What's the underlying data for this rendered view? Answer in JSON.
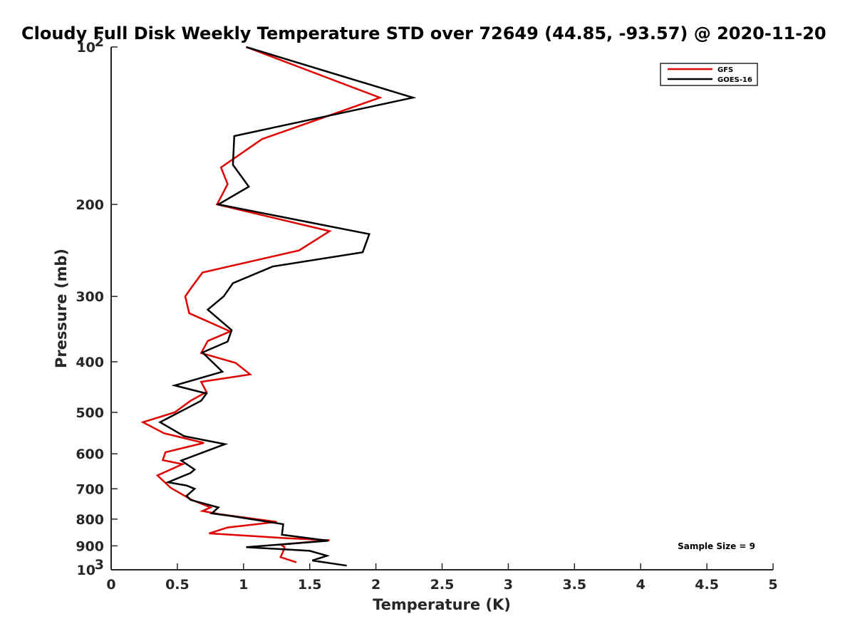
{
  "chart_data": {
    "type": "line",
    "title": "Cloudy Full Disk Weekly Temperature STD over 72649 (44.85, -93.57) @ 2020-11-20",
    "xlabel": "Temperature (K)",
    "ylabel": "Pressure (mb)",
    "xlim": [
      0,
      5
    ],
    "ylim": [
      1000,
      100
    ],
    "y_scale": "log",
    "x_ticks": [
      {
        "value": 0,
        "label": "0"
      },
      {
        "value": 0.5,
        "label": "0.5"
      },
      {
        "value": 1,
        "label": "1"
      },
      {
        "value": 1.5,
        "label": "1.5"
      },
      {
        "value": 2,
        "label": "2"
      },
      {
        "value": 2.5,
        "label": "2.5"
      },
      {
        "value": 3,
        "label": "3"
      },
      {
        "value": 3.5,
        "label": "3.5"
      },
      {
        "value": 4,
        "label": "4"
      },
      {
        "value": 4.5,
        "label": "4.5"
      },
      {
        "value": 5,
        "label": "5"
      }
    ],
    "y_ticks": [
      {
        "value": 100,
        "label": "10",
        "sup": "2"
      },
      {
        "value": 200,
        "label": "200"
      },
      {
        "value": 300,
        "label": "300"
      },
      {
        "value": 400,
        "label": "400"
      },
      {
        "value": 500,
        "label": "500"
      },
      {
        "value": 600,
        "label": "600"
      },
      {
        "value": 700,
        "label": "700"
      },
      {
        "value": 800,
        "label": "800"
      },
      {
        "value": 900,
        "label": "900"
      },
      {
        "value": 1000,
        "label": "10",
        "sup": "3"
      }
    ],
    "legend_position": "top-right",
    "grid": false,
    "annotation": "Sample Size = 9",
    "series": [
      {
        "name": "GFS",
        "color": "#e00000",
        "points": [
          [
            1.02,
            100
          ],
          [
            2.03,
            125
          ],
          [
            1.14,
            150
          ],
          [
            0.83,
            170
          ],
          [
            0.88,
            183
          ],
          [
            0.8,
            200
          ],
          [
            1.65,
            225
          ],
          [
            1.42,
            245
          ],
          [
            0.69,
            270
          ],
          [
            0.6,
            290
          ],
          [
            0.56,
            300
          ],
          [
            0.59,
            323
          ],
          [
            0.9,
            350
          ],
          [
            0.73,
            365
          ],
          [
            0.68,
            385
          ],
          [
            0.94,
            402
          ],
          [
            1.05,
            423
          ],
          [
            0.68,
            437
          ],
          [
            0.72,
            457
          ],
          [
            0.6,
            475
          ],
          [
            0.48,
            500
          ],
          [
            0.24,
            522
          ],
          [
            0.4,
            548
          ],
          [
            0.7,
            572
          ],
          [
            0.41,
            596
          ],
          [
            0.39,
            617
          ],
          [
            0.54,
            628
          ],
          [
            0.35,
            660
          ],
          [
            0.45,
            697
          ],
          [
            0.6,
            733
          ],
          [
            0.75,
            760
          ],
          [
            0.69,
            772
          ],
          [
            0.82,
            783
          ],
          [
            1.25,
            810
          ],
          [
            0.88,
            830
          ],
          [
            0.74,
            852
          ],
          [
            1.32,
            870
          ],
          [
            1.65,
            878
          ],
          [
            1.28,
            895
          ],
          [
            1.31,
            905
          ],
          [
            1.3,
            922
          ],
          [
            1.28,
            946
          ],
          [
            1.4,
            968
          ]
        ]
      },
      {
        "name": "GOES-16",
        "color": "#000000",
        "points": [
          [
            1.02,
            100
          ],
          [
            2.28,
            125
          ],
          [
            0.93,
            148
          ],
          [
            0.92,
            168
          ],
          [
            1.04,
            185
          ],
          [
            0.81,
            200
          ],
          [
            1.95,
            228
          ],
          [
            1.9,
            247
          ],
          [
            1.22,
            263
          ],
          [
            0.92,
            283
          ],
          [
            0.85,
            300
          ],
          [
            0.73,
            318
          ],
          [
            0.91,
            348
          ],
          [
            0.88,
            366
          ],
          [
            0.69,
            384
          ],
          [
            0.84,
            418
          ],
          [
            0.48,
            444
          ],
          [
            0.72,
            460
          ],
          [
            0.68,
            475
          ],
          [
            0.37,
            522
          ],
          [
            0.55,
            555
          ],
          [
            0.86,
            575
          ],
          [
            0.53,
            618
          ],
          [
            0.63,
            643
          ],
          [
            0.6,
            653
          ],
          [
            0.43,
            680
          ],
          [
            0.57,
            690
          ],
          [
            0.63,
            700
          ],
          [
            0.57,
            722
          ],
          [
            0.6,
            735
          ],
          [
            0.81,
            760
          ],
          [
            0.76,
            780
          ],
          [
            0.92,
            790
          ],
          [
            1.3,
            818
          ],
          [
            1.29,
            857
          ],
          [
            1.64,
            880
          ],
          [
            1.02,
            905
          ],
          [
            1.5,
            920
          ],
          [
            1.63,
            940
          ],
          [
            1.52,
            960
          ],
          [
            1.78,
            982
          ]
        ]
      }
    ]
  }
}
